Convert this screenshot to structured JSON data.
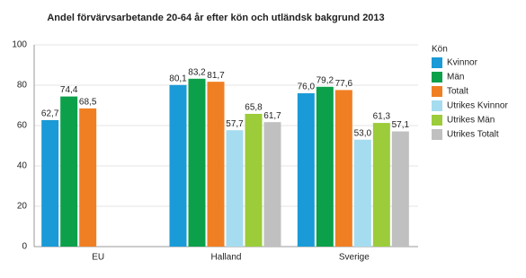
{
  "chart_data": {
    "type": "bar",
    "title": "Andel förvärvsarbetande 20-64 år efter kön och utländsk bakgrund 2013",
    "categories": [
      "EU",
      "Halland",
      "Sverige"
    ],
    "legend_title": "Kön",
    "series": [
      {
        "name": "Kvinnor",
        "color": "#1a9ad6",
        "values": [
          62.7,
          80.1,
          76.0
        ],
        "value_labels": [
          "62,7",
          "80,1",
          "76,0"
        ]
      },
      {
        "name": "Män",
        "color": "#0ca04a",
        "values": [
          74.4,
          83.2,
          79.2
        ],
        "value_labels": [
          "74,4",
          "83,2",
          "79,2"
        ]
      },
      {
        "name": "Totalt",
        "color": "#f07f23",
        "values": [
          68.5,
          81.7,
          77.6
        ],
        "value_labels": [
          "68,5",
          "81,7",
          "77,6"
        ]
      },
      {
        "name": "Utrikes Kvinnor",
        "color": "#a6dcef",
        "values": [
          null,
          57.7,
          53.0
        ],
        "value_labels": [
          null,
          "57,7",
          "53,0"
        ]
      },
      {
        "name": "Utrikes Män",
        "color": "#9ccc3a",
        "values": [
          null,
          65.8,
          61.3
        ],
        "value_labels": [
          null,
          "65,8",
          "61,3"
        ]
      },
      {
        "name": "Utrikes Totalt",
        "color": "#c0c0c0",
        "values": [
          null,
          61.7,
          57.1
        ],
        "value_labels": [
          null,
          "61,7",
          "57,1"
        ]
      }
    ],
    "ylim": [
      0,
      100
    ],
    "yticks": [
      0,
      20,
      40,
      60,
      80,
      100
    ],
    "grid": true,
    "legend": "right"
  }
}
